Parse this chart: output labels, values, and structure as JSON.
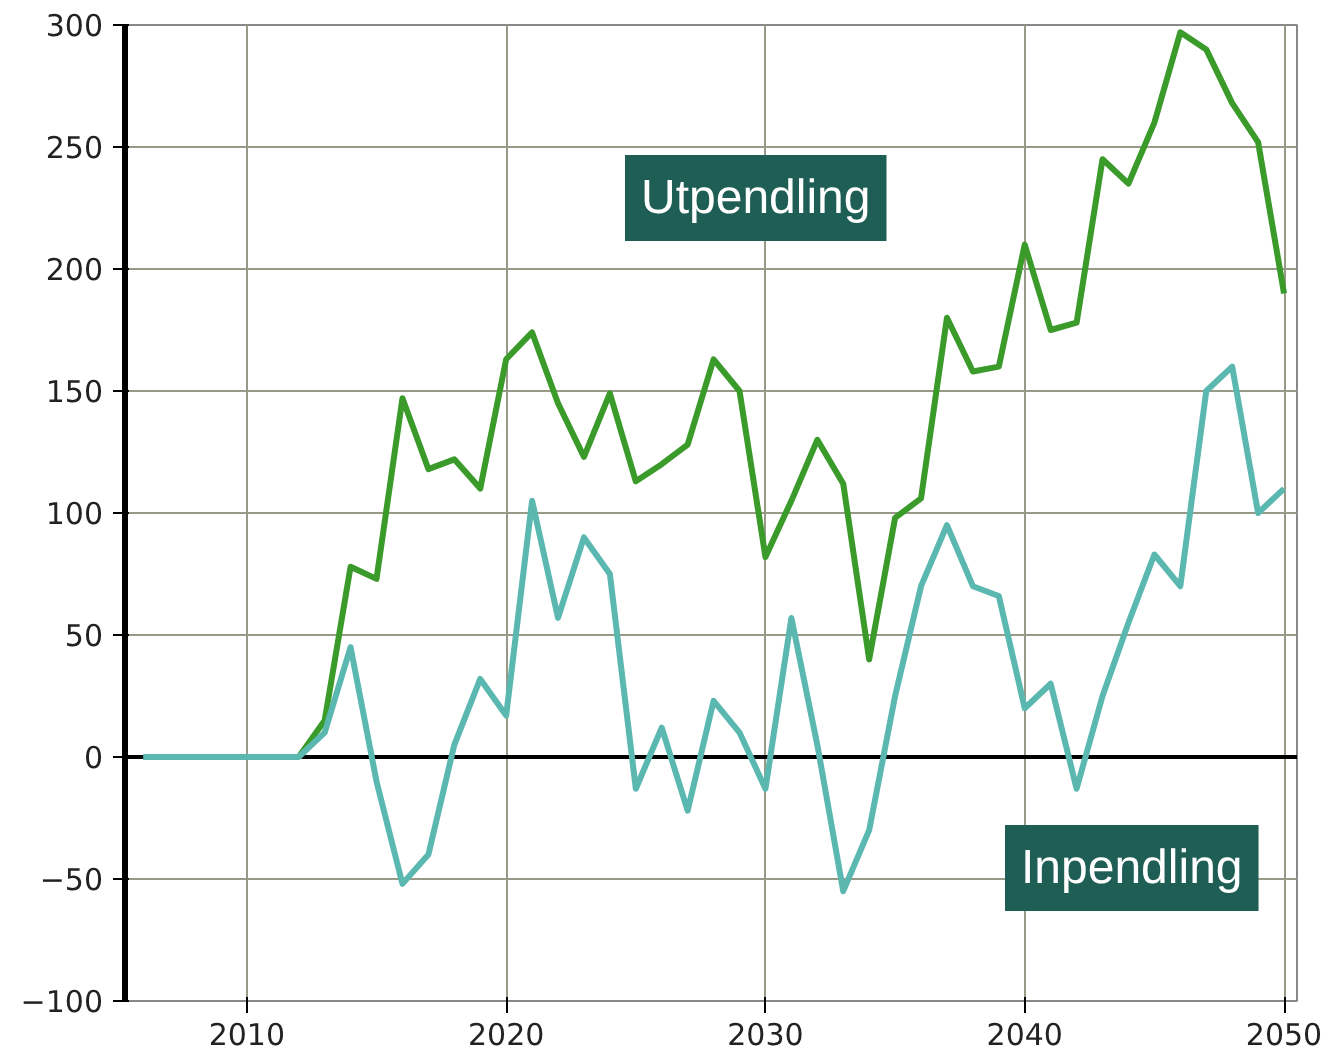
{
  "chart_data": {
    "type": "line",
    "x": [
      2006,
      2007,
      2008,
      2009,
      2010,
      2011,
      2012,
      2013,
      2014,
      2015,
      2016,
      2017,
      2018,
      2019,
      2020,
      2021,
      2022,
      2023,
      2024,
      2025,
      2026,
      2027,
      2028,
      2029,
      2030,
      2031,
      2032,
      2033,
      2034,
      2035,
      2036,
      2037,
      2038,
      2039,
      2040,
      2041,
      2042,
      2043,
      2044,
      2045,
      2046,
      2047,
      2048,
      2049,
      2050
    ],
    "series": [
      {
        "name": "Utpendling",
        "color": "#3a9a2a",
        "x": [
          2012,
          2013,
          2014,
          2015,
          2016,
          2017,
          2018,
          2019,
          2020,
          2021,
          2022,
          2023,
          2024,
          2025,
          2026,
          2027,
          2028,
          2029,
          2030,
          2031,
          2032,
          2033,
          2034,
          2035,
          2036,
          2037,
          2038,
          2039,
          2040,
          2041,
          2042,
          2043,
          2044,
          2045,
          2046,
          2047,
          2048,
          2049,
          2050
        ],
        "values": [
          0,
          15,
          78,
          73,
          147,
          118,
          122,
          110,
          163,
          174,
          145,
          123,
          149,
          113,
          120,
          128,
          163,
          150,
          82,
          105,
          130,
          112,
          40,
          98,
          106,
          180,
          158,
          160,
          210,
          175,
          178,
          245,
          235,
          260,
          297,
          290,
          268,
          252,
          190
        ]
      },
      {
        "name": "Inpendling",
        "color": "#5bb8b0",
        "values": [
          0,
          0,
          0,
          0,
          0,
          0,
          0,
          10,
          45,
          -10,
          -52,
          -40,
          5,
          32,
          17,
          105,
          57,
          90,
          75,
          -13,
          12,
          -22,
          23,
          10,
          -13,
          57,
          5,
          -55,
          -30,
          25,
          70,
          95,
          70,
          66,
          20,
          30,
          -13,
          25,
          55,
          83,
          70,
          150,
          160,
          100,
          110
        ]
      }
    ],
    "xlim": [
      2005.3,
      2050.5
    ],
    "ylim": [
      -100,
      300
    ],
    "xticks": [
      2010,
      2020,
      2030,
      2040,
      2050
    ],
    "yticks": [
      -100,
      -50,
      0,
      50,
      100,
      150,
      200,
      250,
      300
    ],
    "ref_lines": [
      {
        "axis": "y",
        "value": 0,
        "color": "#000000"
      }
    ],
    "grid": true,
    "marker": "none",
    "line_style": "solid"
  }
}
